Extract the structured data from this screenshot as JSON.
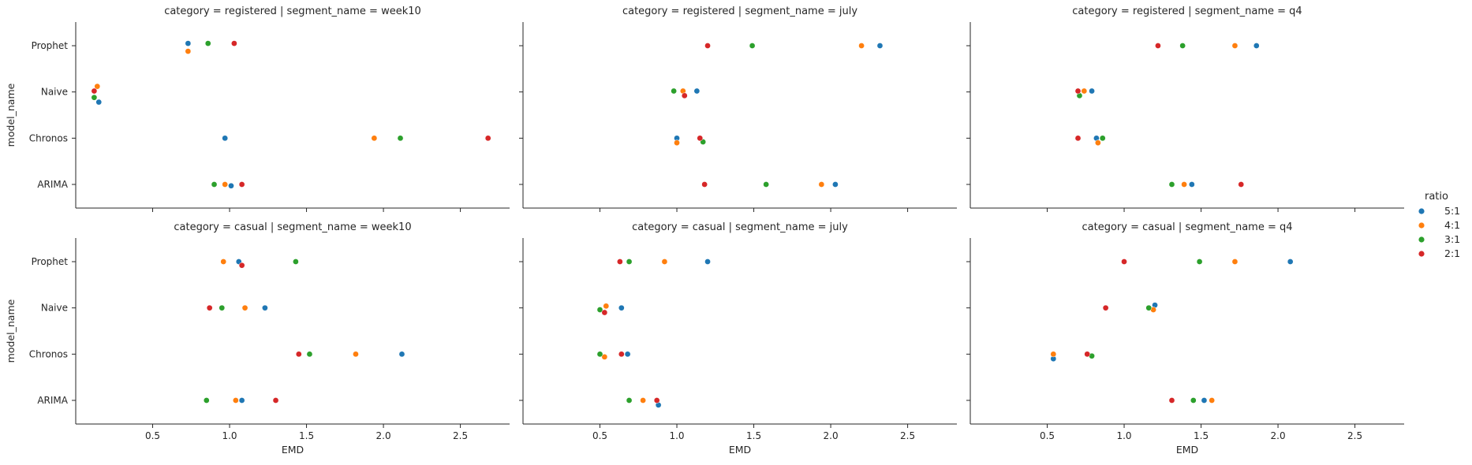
{
  "chart_data": {
    "type": "scatter",
    "kind": "strip (categorical scatter), faceted 2x3",
    "x_label": "EMD",
    "y_label": "model_name",
    "y_categories": [
      "Prophet",
      "Naive",
      "Chronos",
      "ARIMA"
    ],
    "x_ticks": [
      "0.5",
      "1.0",
      "1.5",
      "2.0",
      "2.5"
    ],
    "xlim": [
      0.0,
      2.82
    ],
    "legend": {
      "title": "ratio",
      "placement": "right",
      "items": [
        {
          "label": "5:1",
          "color": "#1f77b4"
        },
        {
          "label": "4:1",
          "color": "#ff7f0e"
        },
        {
          "label": "3:1",
          "color": "#2ca02c"
        },
        {
          "label": "2:1",
          "color": "#d62728"
        }
      ]
    },
    "facets": [
      {
        "title": "category = registered | segment_name = week10",
        "row": 0,
        "col": 0,
        "points": [
          {
            "model": "Prophet",
            "ratio": "5:1",
            "x": 0.73,
            "j": -0.05
          },
          {
            "model": "Prophet",
            "ratio": "4:1",
            "x": 0.73,
            "j": 0.12
          },
          {
            "model": "Prophet",
            "ratio": "3:1",
            "x": 0.86,
            "j": -0.05
          },
          {
            "model": "Prophet",
            "ratio": "2:1",
            "x": 1.03,
            "j": -0.05
          },
          {
            "model": "Naive",
            "ratio": "5:1",
            "x": 0.15,
            "j": 0.22
          },
          {
            "model": "Naive",
            "ratio": "4:1",
            "x": 0.14,
            "j": -0.12
          },
          {
            "model": "Naive",
            "ratio": "3:1",
            "x": 0.12,
            "j": 0.12
          },
          {
            "model": "Naive",
            "ratio": "2:1",
            "x": 0.12,
            "j": -0.02
          },
          {
            "model": "Chronos",
            "ratio": "5:1",
            "x": 0.97,
            "j": 0.0
          },
          {
            "model": "Chronos",
            "ratio": "4:1",
            "x": 1.94,
            "j": 0.0
          },
          {
            "model": "Chronos",
            "ratio": "3:1",
            "x": 2.11,
            "j": 0.0
          },
          {
            "model": "Chronos",
            "ratio": "2:1",
            "x": 2.68,
            "j": 0.0
          },
          {
            "model": "ARIMA",
            "ratio": "5:1",
            "x": 1.01,
            "j": 0.03
          },
          {
            "model": "ARIMA",
            "ratio": "4:1",
            "x": 0.97,
            "j": 0.0
          },
          {
            "model": "ARIMA",
            "ratio": "3:1",
            "x": 0.9,
            "j": 0.0
          },
          {
            "model": "ARIMA",
            "ratio": "2:1",
            "x": 1.08,
            "j": 0.0
          }
        ]
      },
      {
        "title": "category = registered | segment_name = july",
        "row": 0,
        "col": 1,
        "points": [
          {
            "model": "Prophet",
            "ratio": "5:1",
            "x": 2.32,
            "j": 0.0
          },
          {
            "model": "Prophet",
            "ratio": "4:1",
            "x": 2.2,
            "j": 0.0
          },
          {
            "model": "Prophet",
            "ratio": "3:1",
            "x": 1.49,
            "j": 0.0
          },
          {
            "model": "Prophet",
            "ratio": "2:1",
            "x": 1.2,
            "j": 0.0
          },
          {
            "model": "Naive",
            "ratio": "5:1",
            "x": 1.13,
            "j": -0.02
          },
          {
            "model": "Naive",
            "ratio": "4:1",
            "x": 1.04,
            "j": -0.02
          },
          {
            "model": "Naive",
            "ratio": "3:1",
            "x": 0.98,
            "j": -0.02
          },
          {
            "model": "Naive",
            "ratio": "2:1",
            "x": 1.05,
            "j": 0.08
          },
          {
            "model": "Chronos",
            "ratio": "5:1",
            "x": 1.0,
            "j": 0.0
          },
          {
            "model": "Chronos",
            "ratio": "4:1",
            "x": 1.0,
            "j": 0.1
          },
          {
            "model": "Chronos",
            "ratio": "3:1",
            "x": 1.17,
            "j": 0.08
          },
          {
            "model": "Chronos",
            "ratio": "2:1",
            "x": 1.15,
            "j": 0.0
          },
          {
            "model": "ARIMA",
            "ratio": "5:1",
            "x": 2.03,
            "j": 0.0
          },
          {
            "model": "ARIMA",
            "ratio": "4:1",
            "x": 1.94,
            "j": 0.0
          },
          {
            "model": "ARIMA",
            "ratio": "3:1",
            "x": 1.58,
            "j": 0.0
          },
          {
            "model": "ARIMA",
            "ratio": "2:1",
            "x": 1.18,
            "j": 0.0
          }
        ]
      },
      {
        "title": "category = registered | segment_name = q4",
        "row": 0,
        "col": 2,
        "points": [
          {
            "model": "Prophet",
            "ratio": "5:1",
            "x": 1.86,
            "j": 0.0
          },
          {
            "model": "Prophet",
            "ratio": "4:1",
            "x": 1.72,
            "j": 0.0
          },
          {
            "model": "Prophet",
            "ratio": "3:1",
            "x": 1.38,
            "j": 0.0
          },
          {
            "model": "Prophet",
            "ratio": "2:1",
            "x": 1.22,
            "j": 0.0
          },
          {
            "model": "Naive",
            "ratio": "5:1",
            "x": 0.79,
            "j": -0.02
          },
          {
            "model": "Naive",
            "ratio": "4:1",
            "x": 0.74,
            "j": -0.02
          },
          {
            "model": "Naive",
            "ratio": "3:1",
            "x": 0.71,
            "j": 0.08
          },
          {
            "model": "Naive",
            "ratio": "2:1",
            "x": 0.7,
            "j": -0.02
          },
          {
            "model": "Chronos",
            "ratio": "5:1",
            "x": 0.82,
            "j": 0.0
          },
          {
            "model": "Chronos",
            "ratio": "4:1",
            "x": 0.83,
            "j": 0.1
          },
          {
            "model": "Chronos",
            "ratio": "3:1",
            "x": 0.86,
            "j": 0.0
          },
          {
            "model": "Chronos",
            "ratio": "2:1",
            "x": 0.7,
            "j": 0.0
          },
          {
            "model": "ARIMA",
            "ratio": "5:1",
            "x": 1.44,
            "j": 0.0
          },
          {
            "model": "ARIMA",
            "ratio": "4:1",
            "x": 1.39,
            "j": 0.0
          },
          {
            "model": "ARIMA",
            "ratio": "3:1",
            "x": 1.31,
            "j": 0.0
          },
          {
            "model": "ARIMA",
            "ratio": "2:1",
            "x": 1.76,
            "j": 0.0
          }
        ]
      },
      {
        "title": "category = casual | segment_name = week10",
        "row": 1,
        "col": 0,
        "points": [
          {
            "model": "Prophet",
            "ratio": "5:1",
            "x": 1.06,
            "j": 0.0
          },
          {
            "model": "Prophet",
            "ratio": "4:1",
            "x": 0.96,
            "j": 0.0
          },
          {
            "model": "Prophet",
            "ratio": "3:1",
            "x": 1.43,
            "j": 0.0
          },
          {
            "model": "Prophet",
            "ratio": "2:1",
            "x": 1.08,
            "j": 0.08
          },
          {
            "model": "Naive",
            "ratio": "5:1",
            "x": 1.23,
            "j": 0.0
          },
          {
            "model": "Naive",
            "ratio": "4:1",
            "x": 1.1,
            "j": 0.0
          },
          {
            "model": "Naive",
            "ratio": "3:1",
            "x": 0.95,
            "j": 0.0
          },
          {
            "model": "Naive",
            "ratio": "2:1",
            "x": 0.87,
            "j": 0.0
          },
          {
            "model": "Chronos",
            "ratio": "5:1",
            "x": 2.12,
            "j": 0.0
          },
          {
            "model": "Chronos",
            "ratio": "4:1",
            "x": 1.82,
            "j": 0.0
          },
          {
            "model": "Chronos",
            "ratio": "3:1",
            "x": 1.52,
            "j": 0.0
          },
          {
            "model": "Chronos",
            "ratio": "2:1",
            "x": 1.45,
            "j": 0.0
          },
          {
            "model": "ARIMA",
            "ratio": "5:1",
            "x": 1.08,
            "j": 0.0
          },
          {
            "model": "ARIMA",
            "ratio": "4:1",
            "x": 1.04,
            "j": 0.0
          },
          {
            "model": "ARIMA",
            "ratio": "3:1",
            "x": 0.85,
            "j": 0.0
          },
          {
            "model": "ARIMA",
            "ratio": "2:1",
            "x": 1.3,
            "j": 0.0
          }
        ]
      },
      {
        "title": "category = casual | segment_name = july",
        "row": 1,
        "col": 1,
        "points": [
          {
            "model": "Prophet",
            "ratio": "5:1",
            "x": 1.2,
            "j": 0.0
          },
          {
            "model": "Prophet",
            "ratio": "4:1",
            "x": 0.92,
            "j": 0.0
          },
          {
            "model": "Prophet",
            "ratio": "3:1",
            "x": 0.69,
            "j": 0.0
          },
          {
            "model": "Prophet",
            "ratio": "2:1",
            "x": 0.63,
            "j": 0.0
          },
          {
            "model": "Naive",
            "ratio": "5:1",
            "x": 0.64,
            "j": 0.0
          },
          {
            "model": "Naive",
            "ratio": "4:1",
            "x": 0.54,
            "j": -0.04
          },
          {
            "model": "Naive",
            "ratio": "3:1",
            "x": 0.5,
            "j": 0.04
          },
          {
            "model": "Naive",
            "ratio": "2:1",
            "x": 0.53,
            "j": 0.1
          },
          {
            "model": "Chronos",
            "ratio": "5:1",
            "x": 0.68,
            "j": 0.0
          },
          {
            "model": "Chronos",
            "ratio": "4:1",
            "x": 0.53,
            "j": 0.06
          },
          {
            "model": "Chronos",
            "ratio": "3:1",
            "x": 0.5,
            "j": 0.0
          },
          {
            "model": "Chronos",
            "ratio": "2:1",
            "x": 0.64,
            "j": 0.0
          },
          {
            "model": "ARIMA",
            "ratio": "5:1",
            "x": 0.88,
            "j": 0.1
          },
          {
            "model": "ARIMA",
            "ratio": "4:1",
            "x": 0.78,
            "j": 0.0
          },
          {
            "model": "ARIMA",
            "ratio": "3:1",
            "x": 0.69,
            "j": 0.0
          },
          {
            "model": "ARIMA",
            "ratio": "2:1",
            "x": 0.87,
            "j": 0.0
          }
        ]
      },
      {
        "title": "category = casual | segment_name = q4",
        "row": 1,
        "col": 2,
        "points": [
          {
            "model": "Prophet",
            "ratio": "5:1",
            "x": 2.08,
            "j": 0.0
          },
          {
            "model": "Prophet",
            "ratio": "4:1",
            "x": 1.72,
            "j": 0.0
          },
          {
            "model": "Prophet",
            "ratio": "3:1",
            "x": 1.49,
            "j": 0.0
          },
          {
            "model": "Prophet",
            "ratio": "2:1",
            "x": 1.0,
            "j": 0.0
          },
          {
            "model": "Naive",
            "ratio": "5:1",
            "x": 1.2,
            "j": -0.06
          },
          {
            "model": "Naive",
            "ratio": "4:1",
            "x": 1.19,
            "j": 0.04
          },
          {
            "model": "Naive",
            "ratio": "3:1",
            "x": 1.16,
            "j": 0.0
          },
          {
            "model": "Naive",
            "ratio": "2:1",
            "x": 0.88,
            "j": 0.0
          },
          {
            "model": "Chronos",
            "ratio": "5:1",
            "x": 0.54,
            "j": 0.1
          },
          {
            "model": "Chronos",
            "ratio": "4:1",
            "x": 0.54,
            "j": 0.0
          },
          {
            "model": "Chronos",
            "ratio": "3:1",
            "x": 0.79,
            "j": 0.04
          },
          {
            "model": "Chronos",
            "ratio": "2:1",
            "x": 0.76,
            "j": 0.0
          },
          {
            "model": "ARIMA",
            "ratio": "5:1",
            "x": 1.52,
            "j": 0.0
          },
          {
            "model": "ARIMA",
            "ratio": "4:1",
            "x": 1.57,
            "j": 0.0
          },
          {
            "model": "ARIMA",
            "ratio": "3:1",
            "x": 1.45,
            "j": 0.0
          },
          {
            "model": "ARIMA",
            "ratio": "2:1",
            "x": 1.31,
            "j": 0.0
          }
        ]
      }
    ]
  }
}
